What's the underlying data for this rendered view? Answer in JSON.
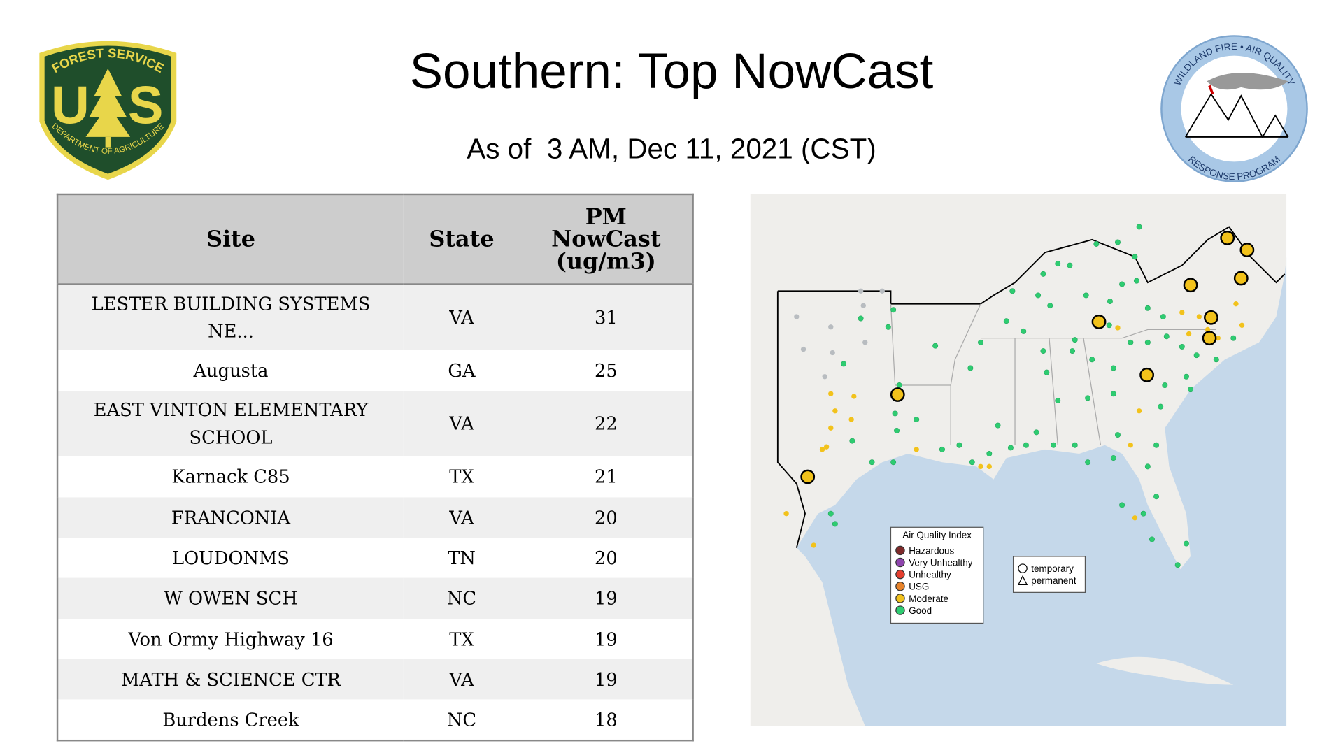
{
  "header": {
    "title": "Southern: Top NowCast",
    "subtitle": "As of  3 AM, Dec 11, 2021 (CST)"
  },
  "logos": {
    "forest_service": {
      "top": "FOREST SERVICE",
      "letters": [
        "U",
        "S"
      ],
      "bottom": "DEPARTMENT OF AGRICULTURE"
    },
    "program": {
      "top": "WILDLAND FIRE • AIR QUALITY",
      "bottom": "RESPONSE PROGRAM"
    }
  },
  "table": {
    "columns": [
      "Site",
      "State",
      "PM NowCast (ug/m3)"
    ],
    "rows": [
      [
        "LESTER BUILDING SYSTEMS NE...",
        "VA",
        31
      ],
      [
        "Augusta",
        "GA",
        25
      ],
      [
        "EAST VINTON ELEMENTARY SCHOOL",
        "VA",
        22
      ],
      [
        "Karnack C85",
        "TX",
        21
      ],
      [
        "FRANCONIA",
        "VA",
        20
      ],
      [
        "LOUDONMS",
        "TN",
        20
      ],
      [
        "W OWEN SCH",
        "NC",
        19
      ],
      [
        "Von Ormy Highway 16",
        "TX",
        19
      ],
      [
        "MATH & SCIENCE CTR",
        "VA",
        19
      ],
      [
        "Burdens Creek",
        "NC",
        18
      ]
    ]
  },
  "map": {
    "legend": {
      "title": "Air Quality Index",
      "items": [
        "Hazardous",
        "Very Unhealthy",
        "Unhealthy",
        "USG",
        "Moderate",
        "Good"
      ]
    },
    "shape_legend": [
      "temporary",
      "permanent"
    ]
  }
}
